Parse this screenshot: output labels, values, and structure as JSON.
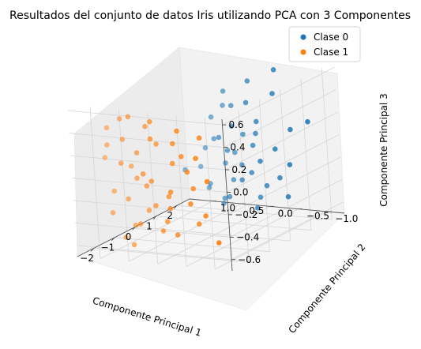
{
  "chart_data": {
    "type": "scatter",
    "title": "Resultados del conjunto de datos Iris utilizando PCA con 3 Componentes",
    "xlabel": "Componente Principal 1",
    "ylabel": "Componente Principal 2",
    "zlabel": "Componente Principal 3",
    "xticks": [
      "−2",
      "−1",
      "0",
      "1",
      "2"
    ],
    "yticks": [
      "−1.0",
      "−0.5",
      "0.0",
      "0.5",
      "1.0"
    ],
    "zticks": [
      "−0.6",
      "−0.4",
      "−0.2",
      "0.0",
      "0.2",
      "0.4",
      "0.6"
    ],
    "xlim": [
      -2.8,
      2.6
    ],
    "ylim": [
      -1.3,
      1.4
    ],
    "zlim": [
      -0.7,
      0.65
    ],
    "grid": true,
    "legend_position": "top-right",
    "colors": {
      "clase0": "#1f77b4",
      "clase1": "#ff7f0e"
    },
    "series": [
      {
        "name": "Clase 0",
        "points": [
          [
            2.4,
            -0.3,
            0.55
          ],
          [
            2.2,
            0.1,
            0.45
          ],
          [
            2.0,
            -0.4,
            0.38
          ],
          [
            2.1,
            0.5,
            0.35
          ],
          [
            1.8,
            0.0,
            0.3
          ],
          [
            1.9,
            0.3,
            0.25
          ],
          [
            2.3,
            0.6,
            0.2
          ],
          [
            1.7,
            -0.2,
            0.15
          ],
          [
            2.0,
            0.7,
            0.12
          ],
          [
            1.6,
            0.2,
            0.1
          ],
          [
            2.2,
            -0.6,
            0.05
          ],
          [
            1.9,
            -0.1,
            0.02
          ],
          [
            1.5,
            0.4,
            0.0
          ],
          [
            2.1,
            0.2,
            -0.02
          ],
          [
            1.8,
            0.6,
            -0.05
          ],
          [
            1.7,
            -0.5,
            -0.08
          ],
          [
            2.0,
            0.0,
            -0.1
          ],
          [
            1.6,
            0.3,
            -0.12
          ],
          [
            1.9,
            0.8,
            -0.15
          ],
          [
            1.5,
            -0.3,
            -0.18
          ],
          [
            2.2,
            0.4,
            -0.2
          ],
          [
            1.8,
            -0.7,
            -0.22
          ],
          [
            1.7,
            0.1,
            -0.25
          ],
          [
            2.0,
            0.5,
            -0.28
          ],
          [
            1.6,
            -0.1,
            -0.3
          ],
          [
            1.9,
            0.9,
            -0.32
          ],
          [
            1.4,
            0.0,
            -0.35
          ],
          [
            2.1,
            -0.4,
            -0.38
          ],
          [
            1.8,
            0.3,
            -0.4
          ],
          [
            1.5,
            0.6,
            -0.42
          ],
          [
            2.0,
            -0.2,
            -0.45
          ],
          [
            1.7,
            0.7,
            -0.48
          ],
          [
            1.3,
            0.2,
            -0.5
          ],
          [
            1.9,
            -0.6,
            -0.52
          ],
          [
            1.6,
            0.4,
            -0.55
          ],
          [
            2.2,
            0.0,
            -0.58
          ],
          [
            1.5,
            -0.2,
            -0.6
          ],
          [
            1.8,
            0.5,
            -0.62
          ],
          [
            0.9,
            0.8,
            -0.25
          ],
          [
            2.5,
            -0.8,
            0.1
          ]
        ]
      },
      {
        "name": "Clase 1",
        "points": [
          [
            -2.4,
            0.5,
            0.55
          ],
          [
            -2.2,
            0.2,
            0.5
          ],
          [
            -2.0,
            0.8,
            0.48
          ],
          [
            -2.3,
            -0.3,
            0.45
          ],
          [
            -1.9,
            0.4,
            0.42
          ],
          [
            -2.1,
            1.0,
            0.4
          ],
          [
            -2.5,
            0.1,
            0.38
          ],
          [
            -1.8,
            -0.5,
            0.35
          ],
          [
            -2.2,
            0.7,
            0.32
          ],
          [
            -2.0,
            -0.1,
            0.3
          ],
          [
            -2.4,
            0.9,
            0.28
          ],
          [
            -1.7,
            0.3,
            0.25
          ],
          [
            -2.3,
            -0.6,
            0.22
          ],
          [
            -2.1,
            0.5,
            0.2
          ],
          [
            -1.9,
            -0.2,
            0.18
          ],
          [
            -2.6,
            0.6,
            0.15
          ],
          [
            -2.0,
            1.1,
            0.12
          ],
          [
            -1.8,
            0.0,
            0.1
          ],
          [
            -2.2,
            -0.4,
            0.08
          ],
          [
            -2.4,
            0.3,
            0.05
          ],
          [
            -1.6,
            0.8,
            0.02
          ],
          [
            -2.1,
            -0.7,
            0.0
          ],
          [
            -2.3,
            0.2,
            -0.02
          ],
          [
            -1.9,
            0.6,
            -0.05
          ],
          [
            -2.5,
            -0.2,
            -0.08
          ],
          [
            -2.0,
            0.4,
            -0.1
          ],
          [
            -1.7,
            -0.3,
            -0.12
          ],
          [
            -2.2,
            0.9,
            -0.15
          ],
          [
            -2.4,
            -0.5,
            -0.18
          ],
          [
            -1.8,
            0.1,
            -0.2
          ],
          [
            -2.1,
            0.7,
            -0.22
          ],
          [
            -2.3,
            -0.1,
            -0.25
          ],
          [
            -1.9,
            0.3,
            -0.28
          ],
          [
            -2.6,
            0.8,
            -0.3
          ],
          [
            -2.0,
            -0.6,
            -0.32
          ],
          [
            -1.7,
            0.5,
            -0.35
          ],
          [
            -2.2,
            0.0,
            -0.38
          ],
          [
            -2.4,
            0.4,
            -0.4
          ],
          [
            -1.8,
            -0.4,
            -0.42
          ],
          [
            -2.1,
            0.6,
            -0.45
          ],
          [
            -2.3,
            -0.2,
            -0.48
          ],
          [
            -1.9,
            0.2,
            -0.5
          ],
          [
            -2.0,
            -0.8,
            -0.55
          ],
          [
            -2.5,
            0.5,
            -0.58
          ],
          [
            -1.8,
            0.9,
            -0.6
          ]
        ]
      }
    ]
  }
}
